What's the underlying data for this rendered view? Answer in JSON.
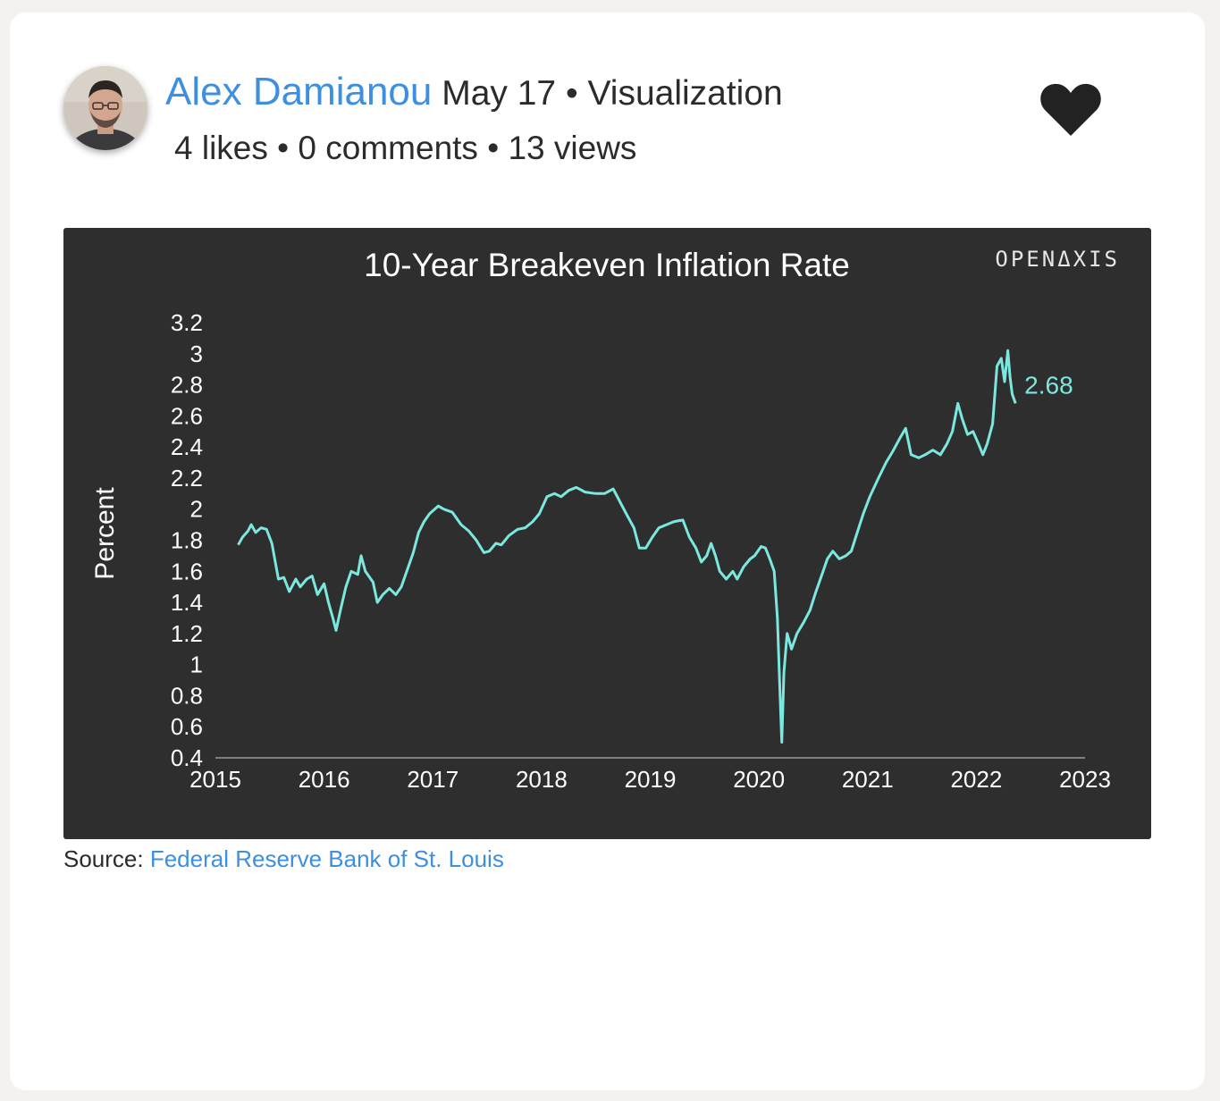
{
  "post": {
    "author": "Alex Damianou",
    "date": "May 17",
    "category": "Visualization",
    "likes": "4 likes",
    "comments": "0 comments",
    "views": "13 views",
    "separator": "•"
  },
  "source": {
    "label": "Source:",
    "link_text": "Federal Reserve Bank of St. Louis"
  },
  "icons": {
    "avatar": "user-photo",
    "like": "heart-icon"
  },
  "colors": {
    "accent": "#3d8fe0",
    "series": "#7be8e0",
    "chart_bg": "#2e2e2e"
  },
  "chart_data": {
    "type": "line",
    "title": "10-Year Breakeven Inflation Rate",
    "brand": "OPENΔXIS",
    "ylabel": "Percent",
    "xlabel": "",
    "xlim": [
      2015,
      2023
    ],
    "ylim": [
      0.4,
      3.2
    ],
    "x_ticks": [
      "2015",
      "2016",
      "2017",
      "2018",
      "2019",
      "2020",
      "2021",
      "2022",
      "2023"
    ],
    "y_ticks": [
      "0.4",
      "0.6",
      "0.8",
      "1",
      "1.2",
      "1.4",
      "1.6",
      "1.8",
      "2",
      "2.2",
      "2.4",
      "2.6",
      "2.8",
      "3",
      "3.2"
    ],
    "grid": false,
    "end_label": "2.68",
    "series": [
      {
        "values": [
          [
            2015.21,
            1.77
          ],
          [
            2015.25,
            1.82
          ],
          [
            2015.3,
            1.86
          ],
          [
            2015.33,
            1.9
          ],
          [
            2015.37,
            1.85
          ],
          [
            2015.42,
            1.88
          ],
          [
            2015.47,
            1.87
          ],
          [
            2015.52,
            1.78
          ],
          [
            2015.58,
            1.55
          ],
          [
            2015.63,
            1.56
          ],
          [
            2015.68,
            1.47
          ],
          [
            2015.74,
            1.55
          ],
          [
            2015.78,
            1.5
          ],
          [
            2015.84,
            1.55
          ],
          [
            2015.89,
            1.57
          ],
          [
            2015.94,
            1.45
          ],
          [
            2016.0,
            1.52
          ],
          [
            2016.04,
            1.4
          ],
          [
            2016.08,
            1.3
          ],
          [
            2016.11,
            1.22
          ],
          [
            2016.15,
            1.35
          ],
          [
            2016.2,
            1.5
          ],
          [
            2016.25,
            1.6
          ],
          [
            2016.31,
            1.58
          ],
          [
            2016.34,
            1.7
          ],
          [
            2016.38,
            1.6
          ],
          [
            2016.45,
            1.53
          ],
          [
            2016.49,
            1.4
          ],
          [
            2016.54,
            1.45
          ],
          [
            2016.6,
            1.49
          ],
          [
            2016.66,
            1.45
          ],
          [
            2016.71,
            1.5
          ],
          [
            2016.76,
            1.6
          ],
          [
            2016.82,
            1.72
          ],
          [
            2016.87,
            1.85
          ],
          [
            2016.92,
            1.92
          ],
          [
            2016.97,
            1.97
          ],
          [
            2017.05,
            2.02
          ],
          [
            2017.1,
            2.0
          ],
          [
            2017.18,
            1.98
          ],
          [
            2017.26,
            1.9
          ],
          [
            2017.33,
            1.86
          ],
          [
            2017.4,
            1.8
          ],
          [
            2017.47,
            1.72
          ],
          [
            2017.52,
            1.73
          ],
          [
            2017.58,
            1.78
          ],
          [
            2017.63,
            1.77
          ],
          [
            2017.7,
            1.83
          ],
          [
            2017.78,
            1.87
          ],
          [
            2017.85,
            1.88
          ],
          [
            2017.92,
            1.92
          ],
          [
            2017.98,
            1.97
          ],
          [
            2018.05,
            2.08
          ],
          [
            2018.12,
            2.1
          ],
          [
            2018.18,
            2.08
          ],
          [
            2018.25,
            2.12
          ],
          [
            2018.32,
            2.14
          ],
          [
            2018.4,
            2.11
          ],
          [
            2018.5,
            2.1
          ],
          [
            2018.58,
            2.1
          ],
          [
            2018.66,
            2.13
          ],
          [
            2018.72,
            2.05
          ],
          [
            2018.78,
            1.97
          ],
          [
            2018.85,
            1.88
          ],
          [
            2018.9,
            1.75
          ],
          [
            2018.96,
            1.75
          ],
          [
            2019.02,
            1.82
          ],
          [
            2019.08,
            1.88
          ],
          [
            2019.15,
            1.9
          ],
          [
            2019.22,
            1.92
          ],
          [
            2019.3,
            1.93
          ],
          [
            2019.36,
            1.82
          ],
          [
            2019.42,
            1.75
          ],
          [
            2019.47,
            1.66
          ],
          [
            2019.52,
            1.7
          ],
          [
            2019.56,
            1.78
          ],
          [
            2019.6,
            1.7
          ],
          [
            2019.64,
            1.6
          ],
          [
            2019.7,
            1.55
          ],
          [
            2019.76,
            1.6
          ],
          [
            2019.8,
            1.55
          ],
          [
            2019.86,
            1.63
          ],
          [
            2019.92,
            1.68
          ],
          [
            2019.96,
            1.7
          ],
          [
            2020.02,
            1.76
          ],
          [
            2020.06,
            1.75
          ],
          [
            2020.1,
            1.68
          ],
          [
            2020.14,
            1.6
          ],
          [
            2020.17,
            1.3
          ],
          [
            2020.19,
            0.9
          ],
          [
            2020.21,
            0.5
          ],
          [
            2020.23,
            0.95
          ],
          [
            2020.26,
            1.2
          ],
          [
            2020.3,
            1.1
          ],
          [
            2020.35,
            1.2
          ],
          [
            2020.41,
            1.27
          ],
          [
            2020.47,
            1.35
          ],
          [
            2020.52,
            1.46
          ],
          [
            2020.58,
            1.58
          ],
          [
            2020.63,
            1.68
          ],
          [
            2020.68,
            1.73
          ],
          [
            2020.74,
            1.68
          ],
          [
            2020.8,
            1.7
          ],
          [
            2020.85,
            1.73
          ],
          [
            2020.9,
            1.84
          ],
          [
            2020.96,
            1.97
          ],
          [
            2021.02,
            2.08
          ],
          [
            2021.1,
            2.2
          ],
          [
            2021.17,
            2.3
          ],
          [
            2021.23,
            2.37
          ],
          [
            2021.3,
            2.46
          ],
          [
            2021.35,
            2.52
          ],
          [
            2021.4,
            2.35
          ],
          [
            2021.47,
            2.33
          ],
          [
            2021.53,
            2.35
          ],
          [
            2021.6,
            2.38
          ],
          [
            2021.67,
            2.35
          ],
          [
            2021.73,
            2.42
          ],
          [
            2021.78,
            2.5
          ],
          [
            2021.83,
            2.68
          ],
          [
            2021.87,
            2.58
          ],
          [
            2021.92,
            2.48
          ],
          [
            2021.97,
            2.5
          ],
          [
            2022.02,
            2.42
          ],
          [
            2022.06,
            2.35
          ],
          [
            2022.1,
            2.42
          ],
          [
            2022.15,
            2.55
          ],
          [
            2022.19,
            2.92
          ],
          [
            2022.23,
            2.97
          ],
          [
            2022.26,
            2.82
          ],
          [
            2022.29,
            3.02
          ],
          [
            2022.31,
            2.85
          ],
          [
            2022.33,
            2.74
          ],
          [
            2022.36,
            2.68
          ]
        ]
      }
    ]
  }
}
